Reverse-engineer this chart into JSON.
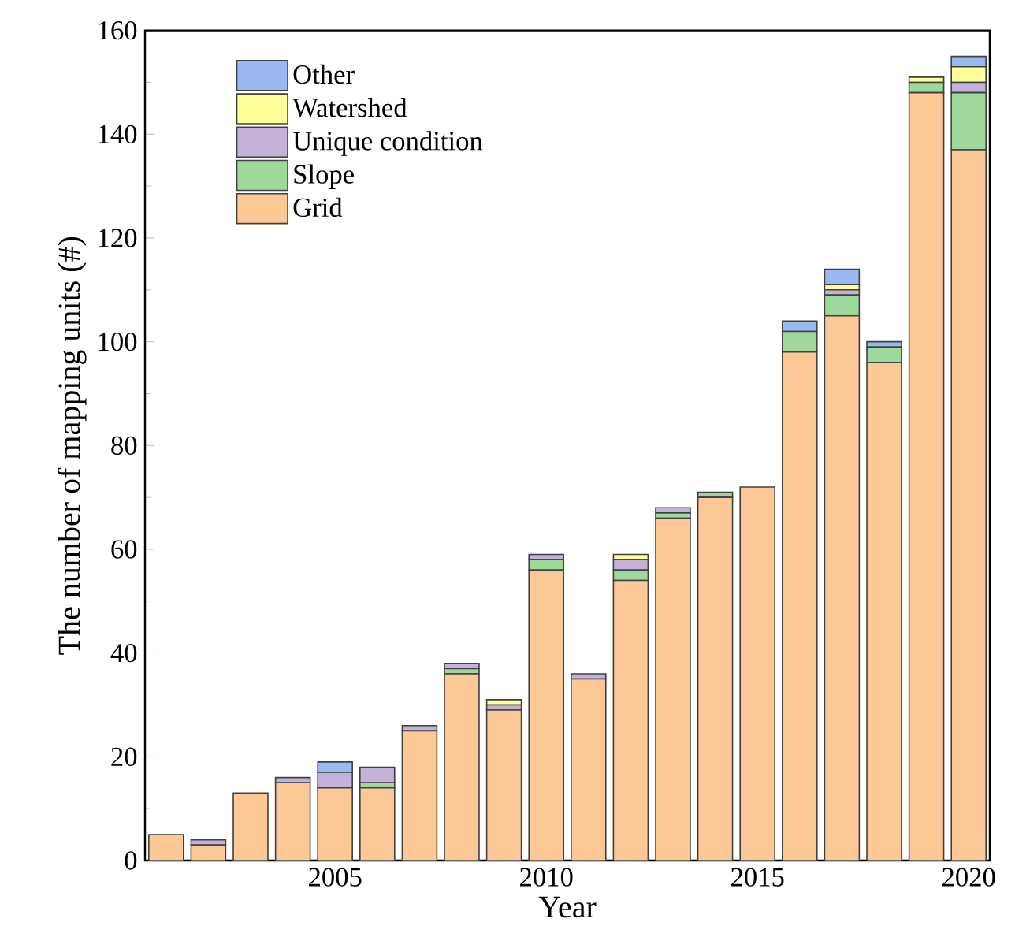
{
  "chart_data": {
    "type": "bar",
    "stacked": true,
    "xlabel": "Year",
    "ylabel": "The number of mapping units (#)",
    "x": [
      2001,
      2002,
      2003,
      2004,
      2005,
      2006,
      2007,
      2008,
      2009,
      2010,
      2011,
      2012,
      2013,
      2014,
      2015,
      2016,
      2017,
      2018,
      2019,
      2020
    ],
    "series": [
      {
        "name": "Grid",
        "color": "#fcc896",
        "values": [
          5,
          3,
          13,
          15,
          14,
          14,
          25,
          36,
          29,
          56,
          35,
          54,
          66,
          70,
          72,
          98,
          105,
          96,
          148,
          137
        ]
      },
      {
        "name": "Slope",
        "color": "#9fd89b",
        "values": [
          0,
          0,
          0,
          0,
          0,
          1,
          0,
          1,
          0,
          2,
          0,
          2,
          1,
          1,
          0,
          4,
          4,
          3,
          2,
          11
        ]
      },
      {
        "name": "Unique condition",
        "color": "#c3b1d9",
        "values": [
          0,
          1,
          0,
          1,
          3,
          3,
          1,
          1,
          1,
          1,
          1,
          2,
          1,
          0,
          0,
          0,
          1,
          0,
          0,
          2
        ]
      },
      {
        "name": "Watershed",
        "color": "#ffff99",
        "values": [
          0,
          0,
          0,
          0,
          0,
          0,
          0,
          0,
          1,
          0,
          0,
          1,
          0,
          0,
          0,
          0,
          1,
          0,
          1,
          3
        ]
      },
      {
        "name": "Other",
        "color": "#9ab9f1",
        "values": [
          0,
          0,
          0,
          0,
          2,
          0,
          0,
          0,
          0,
          0,
          0,
          0,
          0,
          0,
          0,
          2,
          3,
          1,
          0,
          2
        ]
      }
    ],
    "xlim": [
      2000.5,
      2020.5
    ],
    "xticks": [
      2005,
      2010,
      2015,
      2020
    ],
    "ylim": [
      0,
      160
    ],
    "yticks": [
      0,
      20,
      40,
      60,
      80,
      100,
      120,
      140,
      160
    ],
    "grid": false,
    "legend": "top left"
  }
}
